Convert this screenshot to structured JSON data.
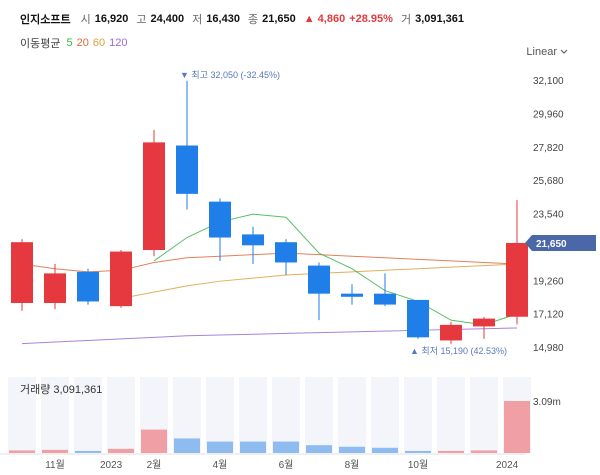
{
  "header": {
    "name": "인지소프트",
    "open_label": "시",
    "open_value": "16,920",
    "high_label": "고",
    "high_value": "24,400",
    "low_label": "저",
    "low_value": "16,430",
    "close_label": "종",
    "close_value": "21,650",
    "change_value": "▲ 4,860",
    "change_pct": "+28.95%",
    "volume_label": "거",
    "volume_value": "3,091,361"
  },
  "ma": {
    "title": "이동평균",
    "p5": "5",
    "p20": "20",
    "p60": "60",
    "p120": "120"
  },
  "scale_label": "Linear",
  "colors": {
    "up": "#e6383f",
    "down": "#1f7ee8",
    "ma5": "#3bb54a",
    "ma20": "#e06a3c",
    "ma60": "#e0a03c",
    "ma120": "#9b6bd6",
    "tag": "#4a67a8"
  },
  "volume_title": "거래량 3,091,361",
  "volume_max_label": "3.09m",
  "current_price_tag": "21,650",
  "annotations": {
    "high": "▼ 최고 32,050 (-32.45%)",
    "low": "▲ 최저 15,190 (42.53%)"
  },
  "chart_data": {
    "type": "candlestick",
    "ylim": [
      14000,
      33000
    ],
    "y_ticks": [
      "32,100",
      "29,960",
      "27,820",
      "25,680",
      "23,540",
      "21,650",
      "19,260",
      "17,120",
      "14,980"
    ],
    "y_tick_values": [
      32100,
      29960,
      27820,
      25680,
      23540,
      null,
      19260,
      17120,
      14980
    ],
    "x_labels": [
      "11월",
      "2023",
      "2월",
      "4월",
      "6월",
      "8월",
      "10월",
      "2024"
    ],
    "x_label_indices": [
      1,
      2.7,
      4,
      6,
      8,
      10,
      12,
      14.7
    ],
    "candles": [
      {
        "o": 17800,
        "h": 21900,
        "l": 17300,
        "c": 21700
      },
      {
        "o": 17800,
        "h": 20300,
        "l": 17400,
        "c": 19700
      },
      {
        "o": 19800,
        "h": 20000,
        "l": 17700,
        "c": 17900
      },
      {
        "o": 17600,
        "h": 21200,
        "l": 17500,
        "c": 21100
      },
      {
        "o": 21200,
        "h": 28900,
        "l": 20800,
        "c": 28100
      },
      {
        "o": 27900,
        "h": 32050,
        "l": 23800,
        "c": 24800
      },
      {
        "o": 24300,
        "h": 24500,
        "l": 20500,
        "c": 22000
      },
      {
        "o": 22200,
        "h": 22700,
        "l": 20300,
        "c": 21500
      },
      {
        "o": 21700,
        "h": 21900,
        "l": 19600,
        "c": 20400
      },
      {
        "o": 20200,
        "h": 20400,
        "l": 16700,
        "c": 18400
      },
      {
        "o": 18400,
        "h": 19000,
        "l": 17700,
        "c": 18200
      },
      {
        "o": 18400,
        "h": 19700,
        "l": 17600,
        "c": 17700
      },
      {
        "o": 18000,
        "h": 18000,
        "l": 15500,
        "c": 15600
      },
      {
        "o": 15400,
        "h": 16600,
        "l": 15190,
        "c": 16400
      },
      {
        "o": 16300,
        "h": 16900,
        "l": 15500,
        "c": 16800
      },
      {
        "o": 16920,
        "h": 24400,
        "l": 16430,
        "c": 21650
      }
    ],
    "volumes": [
      0.05,
      0.06,
      0.04,
      0.08,
      0.45,
      0.28,
      0.22,
      0.22,
      0.22,
      0.15,
      0.12,
      0.1,
      0.04,
      0.04,
      0.05,
      1.0
    ],
    "ma5": [
      null,
      null,
      null,
      null,
      20500,
      22000,
      23000,
      23500,
      23300,
      21000,
      20000,
      18600,
      17900,
      16700,
      16400,
      17100
    ],
    "ma20": [
      20300,
      20000,
      19800,
      19900,
      20400,
      20700,
      20800,
      20900,
      21000,
      20900,
      20800,
      20700,
      20600,
      20500,
      20400,
      20300
    ],
    "ma60": [
      null,
      null,
      null,
      18100,
      18500,
      18900,
      19200,
      19400,
      19600,
      19700,
      19800,
      19900,
      20000,
      20100,
      20200,
      20300
    ],
    "ma120": [
      15200,
      15300,
      15400,
      15500,
      15600,
      15700,
      15750,
      15800,
      15850,
      15900,
      15950,
      16000,
      16050,
      16100,
      16150,
      16200
    ]
  }
}
